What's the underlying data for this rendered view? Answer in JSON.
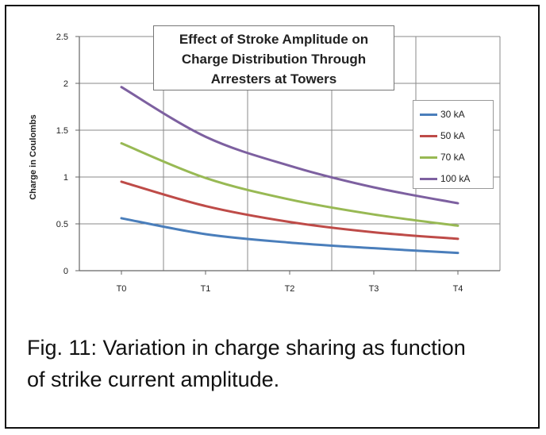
{
  "chart_data": {
    "type": "line",
    "title": "Effect of Stroke Amplitude on Charge  Distribution Through Arresters at Towers",
    "title_lines": [
      "Effect of Stroke Amplitude on",
      "Charge  Distribution Through",
      "Arresters at Towers"
    ],
    "xlabel": "",
    "ylabel": "Charge in Coulombs",
    "categories": [
      "T0",
      "T1",
      "T2",
      "T3",
      "T4"
    ],
    "ylim": [
      0,
      2.5
    ],
    "yticks": [
      "0",
      "0.5",
      "1",
      "1.5",
      "2",
      "2.5"
    ],
    "grid": true,
    "legend_position": "right",
    "series": [
      {
        "name": "30 kA",
        "color": "#4a7ebb",
        "values": [
          0.56,
          0.39,
          0.3,
          0.24,
          0.19
        ]
      },
      {
        "name": "50 kA",
        "color": "#be4b48",
        "values": [
          0.95,
          0.69,
          0.52,
          0.41,
          0.34
        ]
      },
      {
        "name": "70 kA",
        "color": "#98b954",
        "values": [
          1.36,
          0.99,
          0.76,
          0.6,
          0.48
        ]
      },
      {
        "name": "100 kA",
        "color": "#7d60a0",
        "values": [
          1.96,
          1.43,
          1.12,
          0.89,
          0.72
        ]
      }
    ]
  },
  "caption": {
    "line1": "Fig. 11:  Variation in charge sharing as function",
    "line2": "of strike current amplitude."
  }
}
